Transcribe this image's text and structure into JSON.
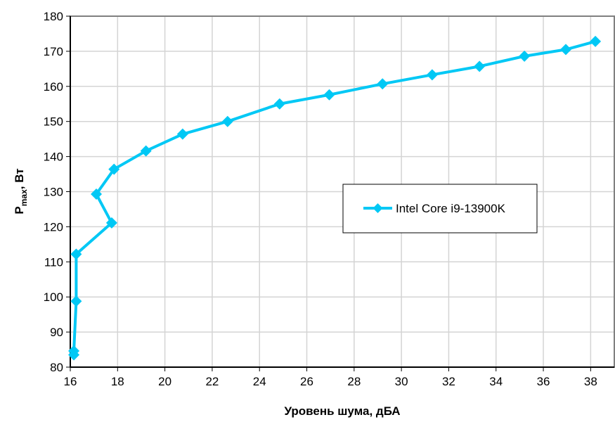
{
  "chart_data": {
    "type": "line",
    "title": "",
    "xlabel": "Уровень шума, дБА",
    "ylabel_main": "P",
    "ylabel_sub": "max",
    "ylabel_rest": ", Вт",
    "xlim": [
      16,
      39
    ],
    "ylim": [
      80,
      180
    ],
    "xticks": [
      16,
      18,
      20,
      22,
      24,
      26,
      28,
      30,
      32,
      34,
      36,
      38
    ],
    "yticks": [
      80,
      90,
      100,
      110,
      120,
      130,
      140,
      150,
      160,
      170,
      180
    ],
    "grid": true,
    "legend_placement": "center-right",
    "series": [
      {
        "name": "Intel Core i9-13900K",
        "color": "#00C8F5",
        "marker": "diamond",
        "x": [
          16.15,
          16.15,
          16.25,
          16.25,
          17.75,
          17.1,
          17.85,
          19.2,
          20.75,
          22.65,
          24.85,
          26.95,
          29.2,
          31.3,
          33.3,
          35.2,
          36.95,
          38.2
        ],
        "y": [
          83.5,
          84.6,
          98.8,
          112.2,
          121.1,
          129.3,
          136.4,
          141.6,
          146.4,
          150.0,
          155.0,
          157.6,
          160.7,
          163.3,
          165.7,
          168.6,
          170.5,
          172.8
        ]
      }
    ]
  }
}
